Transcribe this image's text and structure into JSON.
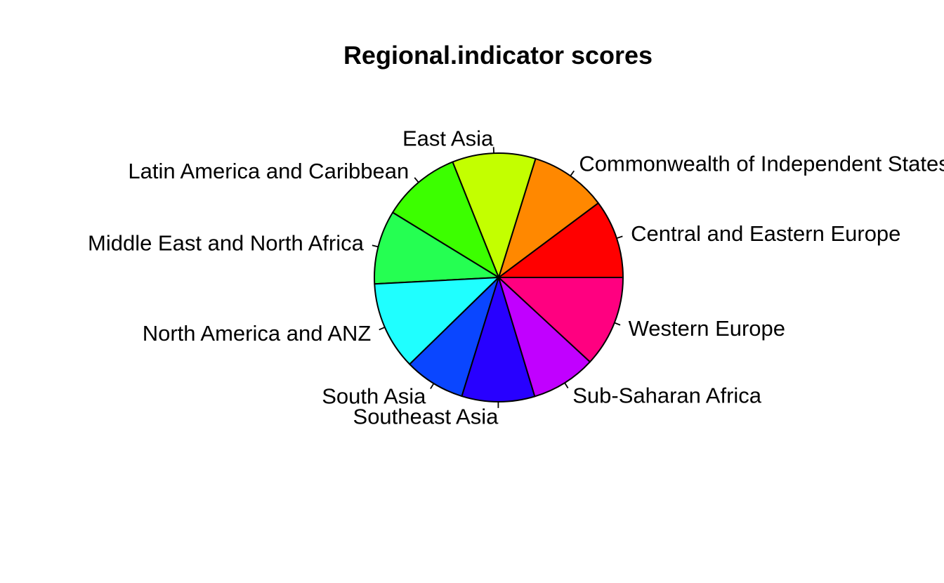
{
  "chart_data": {
    "type": "pie",
    "title": "Regional.indicator scores",
    "categories": [
      "Central and Eastern Europe",
      "Commonwealth of Independent States",
      "East Asia",
      "Latin America and Caribbean",
      "Middle East and North Africa",
      "North America and ANZ",
      "South Asia",
      "Southeast Asia",
      "Sub-Saharan Africa",
      "Western Europe"
    ],
    "values": [
      9.8,
      9.6,
      10.4,
      9.8,
      9.2,
      11.0,
      7.6,
      9.1,
      8.1,
      11.4
    ],
    "colors": [
      "#FF0000",
      "#FF8800",
      "#C3FF00",
      "#3CFF00",
      "#25FF52",
      "#1FFFFF",
      "#0A46FF",
      "#2800FF",
      "#C100FF",
      "#FF0080"
    ],
    "start_angle_deg": 0,
    "direction": "counterclockwise",
    "border_color": "#000000"
  }
}
